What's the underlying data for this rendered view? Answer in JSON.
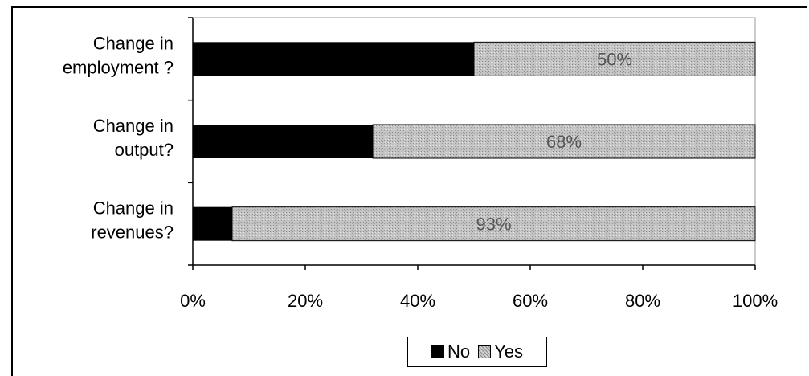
{
  "chart_data": {
    "type": "bar",
    "orientation": "horizontal",
    "stacked": "percent",
    "categories": [
      "Change in employment ?",
      "Change in output?",
      "Change in revenues?"
    ],
    "category_lines": [
      [
        "Change in",
        "employment ?"
      ],
      [
        "Change in",
        "output?"
      ],
      [
        "Change in",
        "revenues?"
      ]
    ],
    "series": [
      {
        "name": "No",
        "values": [
          50,
          32,
          7
        ],
        "color": "#000000"
      },
      {
        "name": "Yes",
        "values": [
          50,
          68,
          93
        ],
        "color": "#b8b8b8"
      }
    ],
    "data_labels": [
      "50%",
      "68%",
      "93%"
    ],
    "x_ticks": [
      "0%",
      "20%",
      "40%",
      "60%",
      "80%",
      "100%"
    ],
    "xlim": [
      0,
      100
    ],
    "legend": "bottom",
    "grid": false
  }
}
